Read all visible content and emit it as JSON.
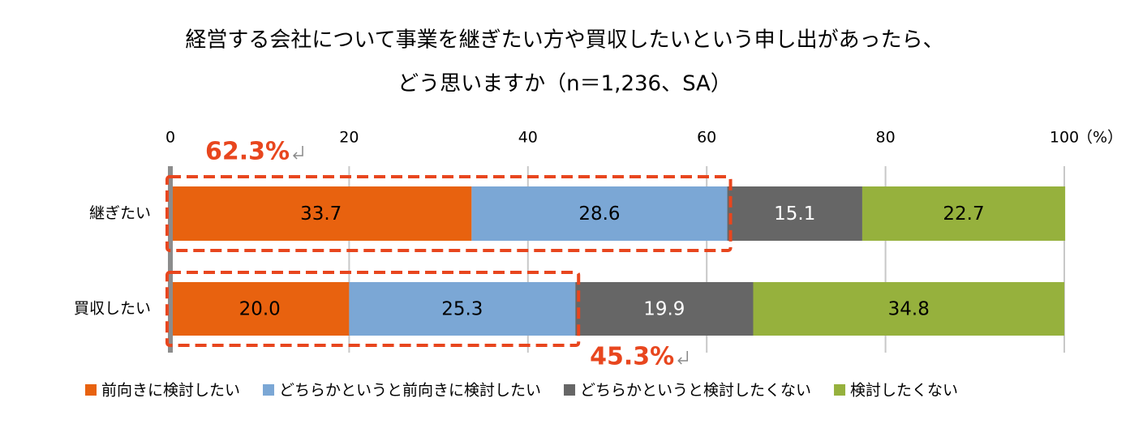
{
  "chart_data": {
    "type": "stacked-bar-horizontal",
    "title": "経営する会社について事業を継ぎたい方や買収したいという申し出があったら、",
    "subtitle": "どう思いますか（n＝1,236、SA）",
    "x_label": "（%）",
    "categories": [
      "継ぎたい",
      "買収したい"
    ],
    "series": [
      {
        "name": "前向きに検討したい",
        "color": "#E8620F",
        "values": [
          33.7,
          20.0
        ],
        "value_labels": [
          "33.7",
          "20.0"
        ]
      },
      {
        "name": "どちらかというと前向きに検討したい",
        "color": "#7BA7D5",
        "values": [
          28.6,
          25.3
        ]
      },
      {
        "name": "どちらかというと検討したくない",
        "color": "#666666",
        "values": [
          15.1,
          19.9
        ]
      },
      {
        "name": "検討したくない",
        "color": "#96B13D",
        "values": [
          22.7,
          34.8
        ]
      }
    ],
    "xlim": [
      0,
      100
    ],
    "xticks": [
      0,
      20,
      40,
      60,
      80,
      100
    ],
    "grid": true,
    "annotations": [
      {
        "value": 62.3,
        "label": "62.3%"
      },
      {
        "value": 45.3,
        "label": "45.3%"
      }
    ],
    "annotation_color": "#E8461E"
  }
}
